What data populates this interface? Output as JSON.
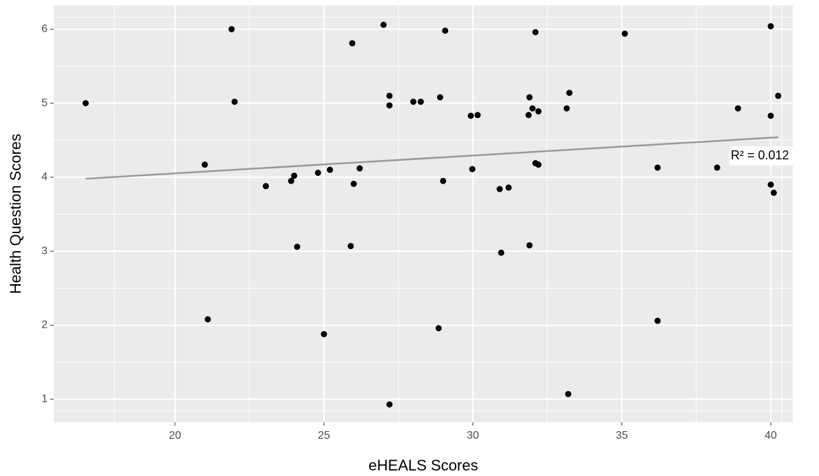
{
  "chart_data": {
    "type": "scatter",
    "x_label": "eHEALS Scores",
    "y_label": "Health Question Scores",
    "xlim": [
      15.93,
      40.74
    ],
    "xticks": [
      20,
      25,
      30,
      35,
      40
    ],
    "ylim": [
      0.69,
      6.32
    ],
    "yticks": [
      1,
      2,
      3,
      4,
      5,
      6
    ],
    "grid": true,
    "color": "#000000",
    "x": [
      17,
      21.9,
      22,
      21,
      21.1,
      23.05,
      23.9,
      24,
      24.1,
      24.8,
      25,
      25.2,
      25.95,
      25.9,
      26,
      26.2,
      27,
      27.2,
      27.2,
      27.2,
      28,
      28.25,
      28.9,
      29,
      28.85,
      29.07,
      29.93,
      30.16,
      29.98,
      30.9,
      30.95,
      31.2,
      31.9,
      31.87,
      32,
      32.2,
      32.1,
      32.1,
      32.2,
      31.9,
      33.15,
      33.24,
      33.2,
      35.1,
      36.2,
      36.2,
      38.2,
      38.9,
      40,
      40,
      40.25,
      40,
      40.1
    ],
    "values": [
      5.0,
      6.0,
      5.02,
      4.17,
      2.08,
      3.88,
      3.95,
      4.02,
      3.06,
      4.06,
      1.88,
      4.1,
      5.81,
      3.07,
      3.91,
      4.12,
      6.06,
      5.1,
      4.97,
      0.93,
      5.02,
      5.02,
      5.08,
      3.95,
      1.96,
      5.98,
      4.83,
      4.84,
      4.11,
      3.84,
      2.98,
      3.86,
      5.08,
      4.84,
      4.93,
      4.89,
      5.96,
      4.19,
      4.17,
      3.08,
      4.93,
      5.14,
      1.07,
      5.94,
      4.13,
      2.06,
      4.13,
      4.93,
      4.83,
      6.04,
      5.1,
      3.9,
      3.79
    ],
    "trend_line": {
      "x": [
        17,
        40.25
      ],
      "values": [
        3.98,
        4.54
      ],
      "color": "#999999"
    },
    "annotation": "R² = 0.012"
  }
}
